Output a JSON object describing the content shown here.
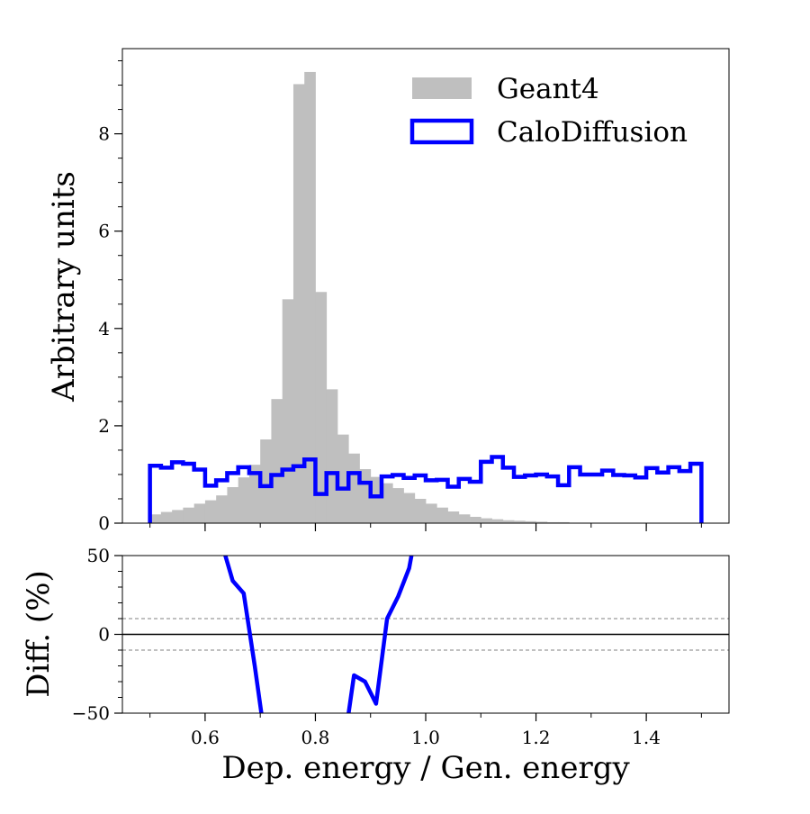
{
  "chart_data": [
    {
      "type": "histogram",
      "panel": "main",
      "ylabel": "Arbitrary units",
      "xlim": [
        0.45,
        1.55
      ],
      "ylim": [
        0,
        9.75
      ],
      "yticks": [
        0,
        2,
        4,
        6,
        8
      ],
      "ytick_labels": [
        "0",
        "2",
        "4",
        "6",
        "8"
      ],
      "legend": {
        "placement": "top-right",
        "entries": [
          "Geant4",
          "CaloDiffusion"
        ]
      },
      "series": [
        {
          "name": "Geant4",
          "style": "filled-step",
          "color": "#bfbfbf",
          "bin_edges": [
            0.5,
            0.52,
            0.54,
            0.56,
            0.58,
            0.6,
            0.62,
            0.64,
            0.66,
            0.68,
            0.7,
            0.72,
            0.74,
            0.76,
            0.78,
            0.8,
            0.82,
            0.84,
            0.86,
            0.88,
            0.9,
            0.92,
            0.94,
            0.96,
            0.98,
            1.0,
            1.02,
            1.04,
            1.06,
            1.08,
            1.1,
            1.12,
            1.14,
            1.16,
            1.18,
            1.2,
            1.22,
            1.24,
            1.26,
            1.28,
            1.3
          ],
          "values": [
            0.18,
            0.23,
            0.27,
            0.32,
            0.4,
            0.47,
            0.57,
            0.74,
            0.94,
            1.2,
            1.72,
            2.55,
            4.6,
            9.02,
            9.27,
            4.75,
            2.75,
            1.82,
            1.43,
            1.11,
            0.95,
            0.82,
            0.72,
            0.62,
            0.5,
            0.4,
            0.32,
            0.24,
            0.18,
            0.13,
            0.1,
            0.08,
            0.06,
            0.05,
            0.04,
            0.03,
            0.02,
            0.02,
            0.01,
            0.01
          ]
        },
        {
          "name": "CaloDiffusion",
          "style": "step",
          "color": "#0000ff",
          "bin_edges": [
            0.5,
            0.52,
            0.54,
            0.56,
            0.58,
            0.6,
            0.62,
            0.64,
            0.66,
            0.68,
            0.7,
            0.72,
            0.74,
            0.76,
            0.78,
            0.8,
            0.82,
            0.84,
            0.86,
            0.88,
            0.9,
            0.92,
            0.94,
            0.96,
            0.98,
            1.0,
            1.02,
            1.04,
            1.06,
            1.08,
            1.1,
            1.12,
            1.14,
            1.16,
            1.18,
            1.2,
            1.22,
            1.24,
            1.26,
            1.28,
            1.3,
            1.32,
            1.34,
            1.36,
            1.38,
            1.4,
            1.42,
            1.44,
            1.46,
            1.48,
            1.5
          ],
          "values": [
            1.18,
            1.14,
            1.25,
            1.22,
            1.1,
            0.77,
            0.88,
            1.03,
            1.15,
            1.03,
            0.76,
            0.99,
            1.1,
            1.17,
            1.31,
            0.6,
            1.03,
            0.71,
            1.03,
            0.83,
            0.55,
            0.96,
            0.99,
            0.93,
            0.98,
            0.88,
            0.89,
            0.75,
            0.91,
            0.85,
            1.26,
            1.36,
            1.14,
            0.95,
            0.98,
            1.0,
            0.96,
            0.78,
            1.15,
            1.0,
            1.0,
            1.08,
            0.99,
            0.98,
            0.94,
            1.13,
            1.04,
            1.15,
            1.07,
            1.22
          ]
        }
      ]
    },
    {
      "type": "line",
      "panel": "ratio",
      "ylabel": "Diff. (%)",
      "xlabel": "Dep. energy / Gen. energy",
      "xlim": [
        0.45,
        1.55
      ],
      "ylim": [
        -50,
        50
      ],
      "xticks": [
        0.6,
        0.8,
        1.0,
        1.2,
        1.4
      ],
      "xtick_labels": [
        "0.6",
        "0.8",
        "1.0",
        "1.2",
        "1.4"
      ],
      "yticks": [
        -50,
        0,
        50
      ],
      "ytick_labels": [
        "−50",
        "0",
        "50"
      ],
      "reference_lines": [
        {
          "y": 0,
          "style": "solid",
          "color": "#000000"
        },
        {
          "y": 10,
          "style": "dashed",
          "color": "#808080"
        },
        {
          "y": -10,
          "style": "dashed",
          "color": "#808080"
        }
      ],
      "series": [
        {
          "name": "CaloDiffusion",
          "color": "#0000ff",
          "segments": [
            {
              "x": [
                0.6,
                0.63,
                0.65,
                0.67,
                0.69,
                0.71
              ],
              "y": [
                180,
                58,
                34,
                26,
                -20,
                -70
              ]
            },
            {
              "x": [
                0.85,
                0.87,
                0.89,
                0.91,
                0.93,
                0.95,
                0.97,
                0.99
              ],
              "y": [
                -75,
                -26,
                -30,
                -44,
                10,
                24,
                42,
                80
              ]
            }
          ]
        }
      ]
    }
  ]
}
